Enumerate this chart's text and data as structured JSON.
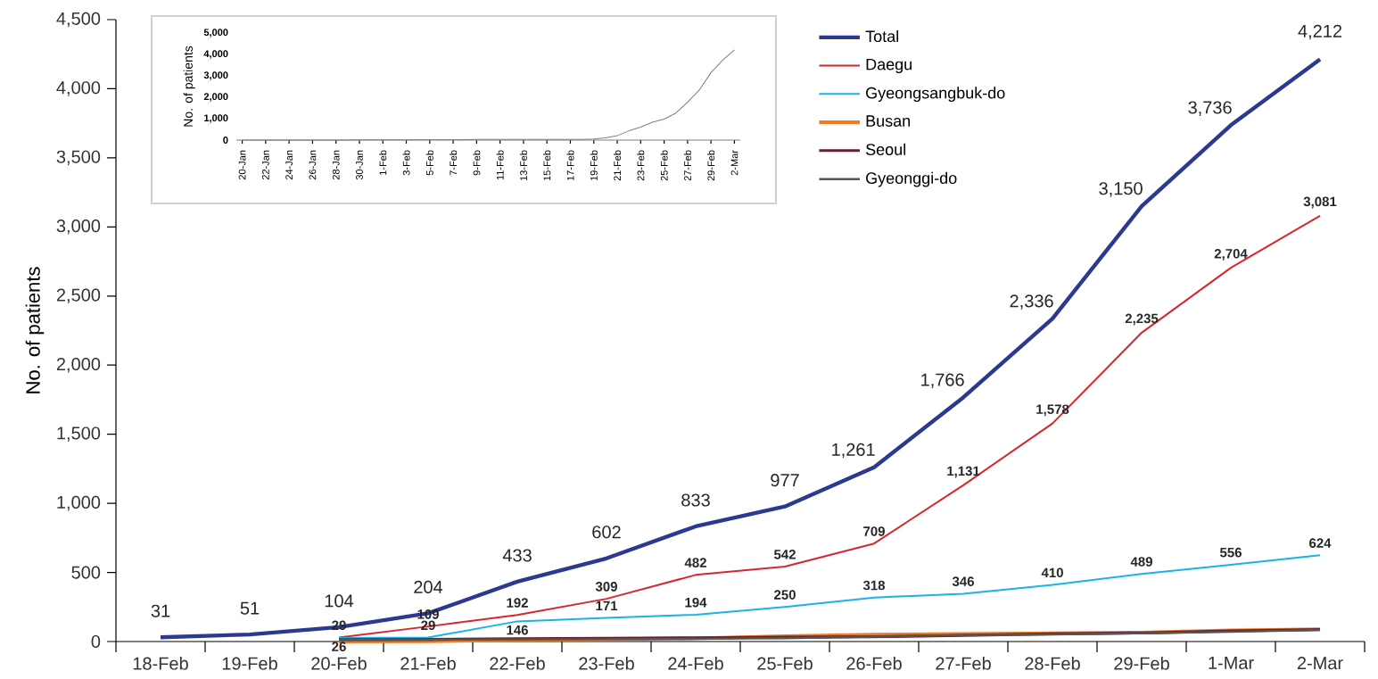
{
  "chart_data": [
    {
      "type": "line",
      "ylabel": "No. of patients",
      "categories": [
        "18-Feb",
        "19-Feb",
        "20-Feb",
        "21-Feb",
        "22-Feb",
        "23-Feb",
        "24-Feb",
        "25-Feb",
        "26-Feb",
        "27-Feb",
        "28-Feb",
        "29-Feb",
        "1-Mar",
        "2-Mar"
      ],
      "ylim": [
        0,
        4500
      ],
      "yticks": [
        {
          "value": 0,
          "label": "0"
        },
        {
          "value": 500,
          "label": "500"
        },
        {
          "value": 1000,
          "label": "1,000"
        },
        {
          "value": 1500,
          "label": "1,500"
        },
        {
          "value": 2000,
          "label": "2,000"
        },
        {
          "value": 2500,
          "label": "2,500"
        },
        {
          "value": 3000,
          "label": "3,000"
        },
        {
          "value": 3500,
          "label": "3,500"
        },
        {
          "value": 4000,
          "label": "4,000"
        },
        {
          "value": 4500,
          "label": "4,500"
        }
      ],
      "legend": "top",
      "series": [
        {
          "name": "Total",
          "color": "#2b3990",
          "values": [
            31,
            51,
            104,
            204,
            433,
            602,
            833,
            977,
            1261,
            1766,
            2336,
            3150,
            3736,
            4212
          ],
          "value_labels": [
            "31",
            "51",
            "104",
            "204",
            "433",
            "602",
            "833",
            "977",
            "1,261",
            "1,766",
            "2,336",
            "3,150",
            "3,736",
            "4,212"
          ]
        },
        {
          "name": "Daegu",
          "color": "#d7262d",
          "values": [
            null,
            null,
            29,
            109,
            192,
            309,
            482,
            542,
            709,
            1131,
            1578,
            2235,
            2704,
            3081
          ],
          "value_labels": [
            null,
            null,
            "29",
            "109",
            "192",
            "309",
            "482",
            "542",
            "709",
            "1,131",
            "1,578",
            "2,235",
            "2,704",
            "3,081"
          ]
        },
        {
          "name": "Gyeongsangbuk-do",
          "color": "#1ab2e8",
          "values": [
            null,
            null,
            26,
            29,
            146,
            171,
            194,
            250,
            318,
            346,
            410,
            489,
            556,
            624
          ],
          "value_labels": [
            null,
            null,
            "26",
            "29",
            "146",
            "171",
            "194",
            "250",
            "318",
            "346",
            "410",
            "489",
            "556",
            "624"
          ]
        },
        {
          "name": "Busan",
          "color": "#f47a20",
          "values": [
            null,
            null,
            0,
            2,
            11,
            16,
            23,
            38,
            50,
            55,
            60,
            65,
            80,
            88
          ]
        },
        {
          "name": "Seoul",
          "color": "#6b1f2a",
          "values": [
            null,
            null,
            14,
            15,
            20,
            24,
            27,
            31,
            35,
            44,
            56,
            62,
            77,
            87
          ]
        },
        {
          "name": "Gyeonggi-do",
          "color": "#555555",
          "values": [
            null,
            null,
            11,
            13,
            15,
            17,
            20,
            24,
            36,
            46,
            52,
            60,
            70,
            84
          ]
        }
      ]
    },
    {
      "type": "line",
      "ylabel": "No. of patients",
      "categories": [
        "20-Jan",
        null,
        "22-Jan",
        null,
        "24-Jan",
        null,
        "26-Jan",
        null,
        "28-Jan",
        null,
        "30-Jan",
        null,
        "1-Feb",
        null,
        "3-Feb",
        null,
        "5-Feb",
        null,
        "7-Feb",
        null,
        "9-Feb",
        null,
        "11-Feb",
        null,
        "13-Feb",
        null,
        "15-Feb",
        null,
        "17-Feb",
        null,
        "19-Feb",
        null,
        "21-Feb",
        null,
        "23-Feb",
        null,
        "25-Feb",
        null,
        "27-Feb",
        null,
        "29-Feb",
        null,
        "2-Mar"
      ],
      "ylim": [
        0,
        5000
      ],
      "yticks": [
        {
          "value": 0,
          "label": "0"
        },
        {
          "value": 1000,
          "label": "1,000"
        },
        {
          "value": 2000,
          "label": "2,000"
        },
        {
          "value": 3000,
          "label": "3,000"
        },
        {
          "value": 4000,
          "label": "4,000"
        },
        {
          "value": 5000,
          "label": "5,000"
        }
      ],
      "series": [
        {
          "color": "#7f7f7f",
          "values": [
            1,
            1,
            1,
            1,
            2,
            2,
            3,
            4,
            4,
            4,
            6,
            11,
            12,
            15,
            15,
            16,
            19,
            23,
            24,
            24,
            27,
            27,
            28,
            28,
            28,
            28,
            28,
            29,
            30,
            31,
            51,
            104,
            204,
            433,
            602,
            833,
            977,
            1261,
            1766,
            2336,
            3150,
            3736,
            4212
          ]
        }
      ]
    }
  ]
}
